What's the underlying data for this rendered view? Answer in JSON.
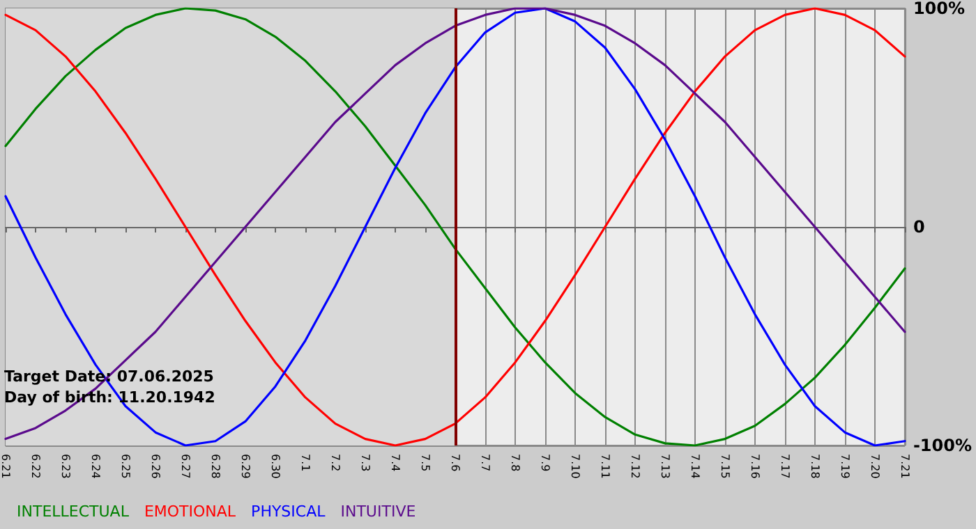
{
  "chart_data": {
    "type": "line",
    "categories": [
      "6.21",
      "6.22",
      "6.23",
      "6.24",
      "6.25",
      "6.26",
      "6.27",
      "6.28",
      "6.29",
      "6.30",
      "7.1",
      "7.2",
      "7.3",
      "7.4",
      "7.5",
      "7.6",
      "7.7",
      "7.8",
      "7.9",
      "7.10",
      "7.11",
      "7.12",
      "7.13",
      "7.14",
      "7.15",
      "7.16",
      "7.17",
      "7.18",
      "7.19",
      "7.20",
      "7.21"
    ],
    "series": [
      {
        "name": "INTELLECTUAL",
        "color": "#008000",
        "values": [
          37,
          54,
          69,
          81,
          91,
          97,
          100,
          99,
          95,
          87,
          76,
          62,
          46,
          28,
          10,
          -10,
          -28,
          -46,
          -62,
          -76,
          -87,
          -95,
          -99,
          -100,
          -97,
          -91,
          -81,
          -69,
          -54,
          -37,
          -19
        ]
      },
      {
        "name": "EMOTIONAL",
        "color": "#ff0000",
        "values": [
          97,
          90,
          78,
          62,
          43,
          22,
          0,
          -22,
          -43,
          -62,
          -78,
          -90,
          -97,
          -100,
          -97,
          -90,
          -78,
          -62,
          -43,
          -22,
          0,
          22,
          43,
          62,
          78,
          90,
          97,
          100,
          97,
          90,
          78
        ]
      },
      {
        "name": "PHYSICAL",
        "color": "#0000ff",
        "values": [
          14,
          -14,
          -40,
          -63,
          -82,
          -94,
          -100,
          -98,
          -89,
          -73,
          -52,
          -27,
          0,
          27,
          52,
          73,
          89,
          98,
          100,
          94,
          82,
          63,
          40,
          14,
          -14,
          -40,
          -63,
          -82,
          -94,
          -100,
          -98
        ]
      },
      {
        "name": "INTUITIVE",
        "color": "#5a0a8c",
        "values": [
          -97,
          -92,
          -84,
          -74,
          -61,
          -48,
          -32,
          -16,
          0,
          16,
          32,
          48,
          61,
          74,
          84,
          92,
          97,
          100,
          100,
          97,
          92,
          84,
          74,
          61,
          48,
          32,
          16,
          0,
          -16,
          -32,
          -48
        ]
      }
    ],
    "ylim": [
      -100,
      100
    ],
    "yticks": [
      {
        "value": -100,
        "label": "-100%"
      },
      0,
      {
        "value": 100,
        "label": "100%"
      }
    ],
    "grid": true,
    "legend": "bottom left",
    "marker": "none",
    "line_style": "solid",
    "ref_lines": [
      {
        "axis": "x",
        "value": "7.6",
        "color": "#800000"
      }
    ],
    "bands": [
      {
        "axis": "x",
        "from": "6.21",
        "to": "7.6",
        "color": "#d9d9d9"
      }
    ],
    "annotations": [
      "Target Date: 07.06.2025",
      "Day of birth: 11.20.1942"
    ]
  }
}
